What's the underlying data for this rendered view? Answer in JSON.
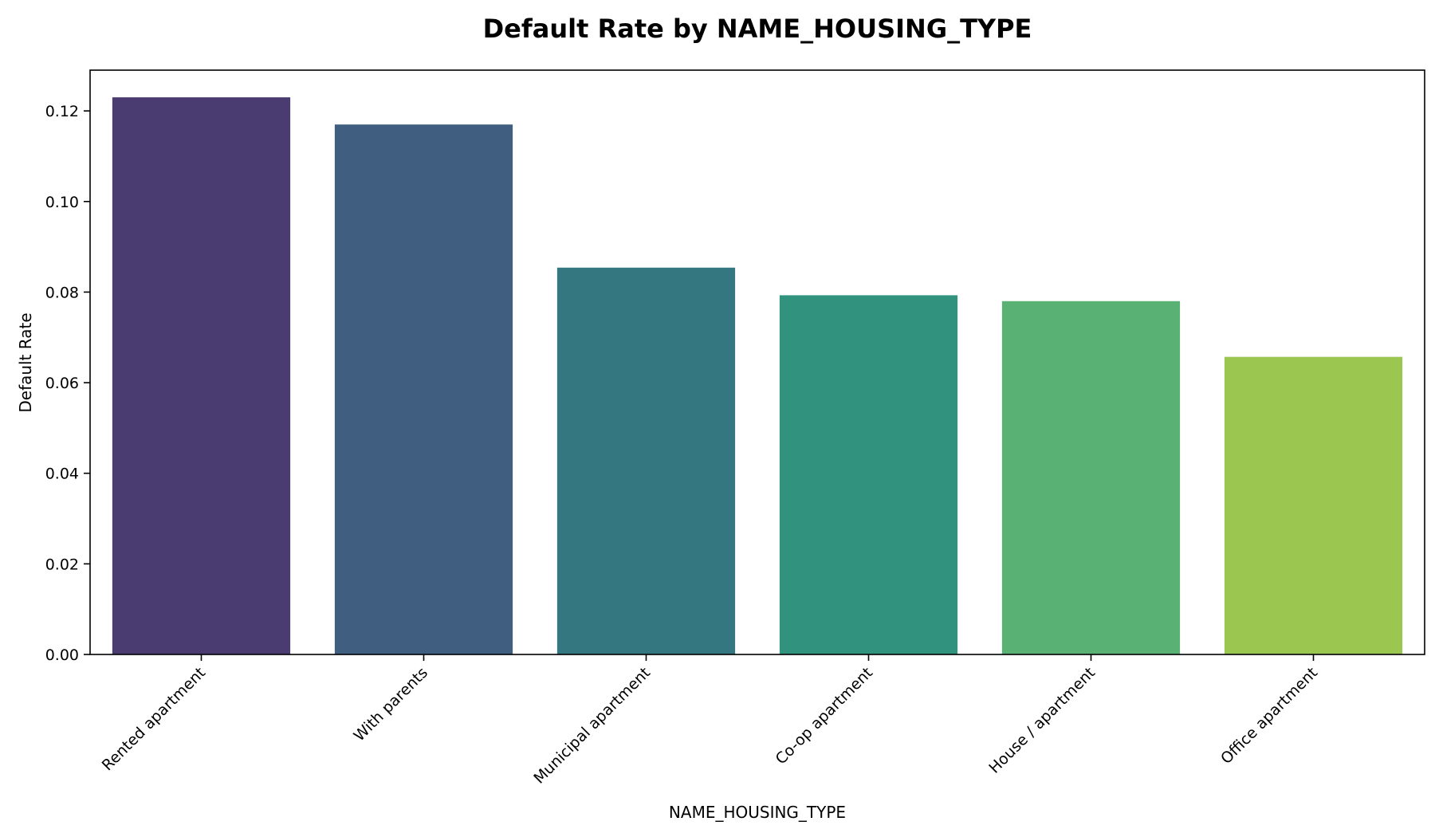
{
  "chart_data": {
    "type": "bar",
    "title": "Default Rate by NAME_HOUSING_TYPE",
    "xlabel": "NAME_HOUSING_TYPE",
    "ylabel": "Default Rate",
    "categories": [
      "Rented apartment",
      "With parents",
      "Municipal apartment",
      "Co-op apartment",
      "House / apartment",
      "Office apartment"
    ],
    "values": [
      0.123,
      0.117,
      0.0854,
      0.0793,
      0.078,
      0.0657
    ],
    "colors": [
      "#4a3b71",
      "#405f80",
      "#357780",
      "#31937e",
      "#5ab174",
      "#9bc64f"
    ],
    "ylim": [
      0,
      0.129
    ],
    "yticks": [
      0.0,
      0.02,
      0.04,
      0.06,
      0.08,
      0.1,
      0.12
    ],
    "ytick_labels": [
      "0.00",
      "0.02",
      "0.04",
      "0.06",
      "0.08",
      "0.10",
      "0.12"
    ],
    "grid": false,
    "legend": "none"
  }
}
